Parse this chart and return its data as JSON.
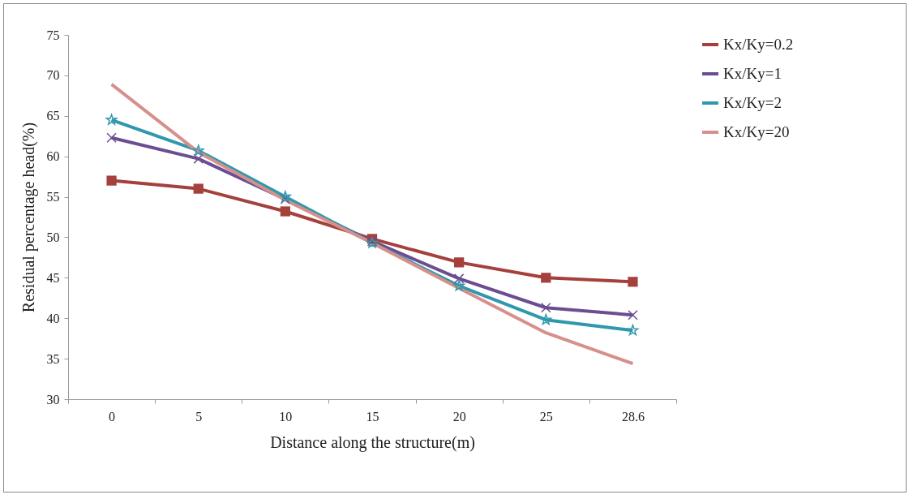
{
  "chart_data": {
    "type": "line",
    "xlabel": "Distance along the structure(m)",
    "ylabel": "Residual percentage  head(%)",
    "categories": [
      "0",
      "5",
      "10",
      "15",
      "20",
      "25",
      "28.6"
    ],
    "series": [
      {
        "name": "Kx/Ky=0.2",
        "color": "#a5403c",
        "marker": "square",
        "values": [
          57,
          56,
          53.2,
          49.8,
          46.9,
          45,
          44.5
        ]
      },
      {
        "name": "Kx/Ky=1",
        "color": "#6b4e91",
        "marker": "cross",
        "values": [
          62.3,
          59.7,
          54.7,
          49.5,
          44.9,
          41.3,
          40.4
        ]
      },
      {
        "name": "Kx/Ky=2",
        "color": "#2f98ad",
        "marker": "star",
        "values": [
          64.5,
          60.7,
          55,
          49.3,
          44,
          39.8,
          38.5
        ]
      },
      {
        "name": "Kx/Ky=20",
        "color": "#d6908c",
        "marker": "none",
        "values": [
          68.9,
          60.5,
          54.6,
          49.3,
          43.7,
          38.2,
          34.4
        ]
      }
    ],
    "ylim": [
      30,
      75
    ],
    "yticks": [
      30,
      35,
      40,
      45,
      50,
      55,
      60,
      65,
      70,
      75
    ],
    "grid": false,
    "legend": "right"
  }
}
